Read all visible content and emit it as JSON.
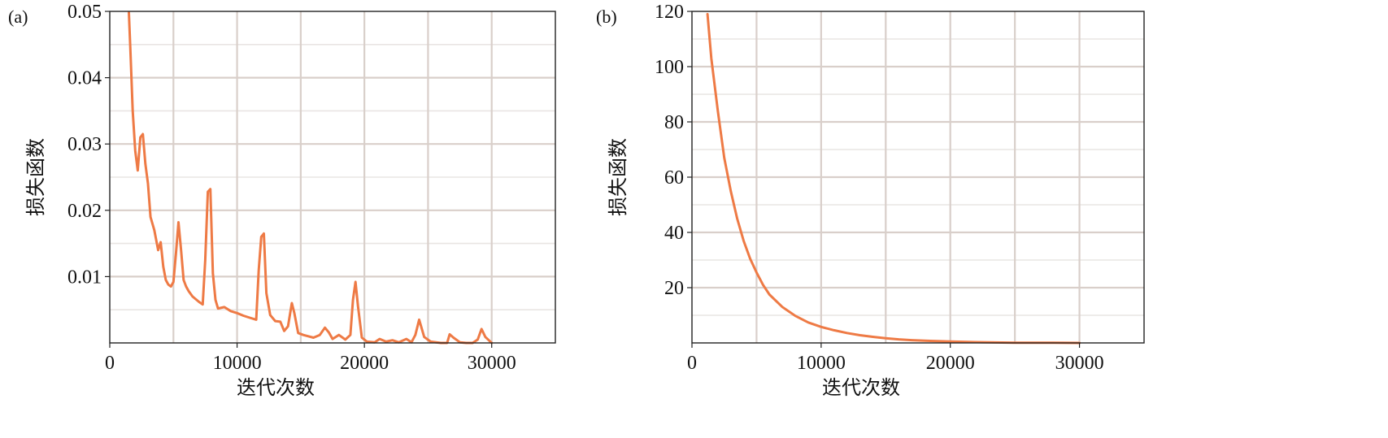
{
  "chart_data": [
    {
      "type": "line",
      "panel_label": "(a)",
      "xlabel": "迭代次数",
      "ylabel": "损失函数",
      "xlim": [
        0,
        35000
      ],
      "ylim": [
        0,
        0.05
      ],
      "xticks": [
        0,
        10000,
        20000,
        30000
      ],
      "xtick_labels": [
        "0",
        "10000",
        "20000",
        "30000"
      ],
      "yticks": [
        0.01,
        0.02,
        0.03,
        0.04,
        0.05
      ],
      "ytick_labels": [
        "0.01",
        "0.02",
        "0.03",
        "0.04",
        "0.05"
      ],
      "grid": true,
      "color": "#ee7a45",
      "series": [
        {
          "x": [
            1500,
            1600,
            1800,
            2000,
            2200,
            2400,
            2600,
            2800,
            3000,
            3200,
            3500,
            3800,
            4000,
            4200,
            4400,
            4600,
            4800,
            5000,
            5200,
            5400,
            5600,
            5800,
            6000,
            6200,
            6500,
            7000,
            7300,
            7500,
            7700,
            7900,
            8100,
            8300,
            8500,
            9000,
            9500,
            10000,
            10500,
            11000,
            11500,
            11700,
            11900,
            12100,
            12300,
            12600,
            13000,
            13400,
            13700,
            14000,
            14300,
            14500,
            14800,
            15200,
            16000,
            16500,
            16900,
            17200,
            17500,
            18000,
            18500,
            18900,
            19100,
            19300,
            19500,
            19800,
            20200,
            20800,
            21200,
            21700,
            22200,
            22700,
            23300,
            23700,
            24000,
            24300,
            24700,
            25200,
            26000,
            26500,
            26700,
            27000,
            27500,
            28000,
            28500,
            28900,
            29200,
            29500,
            30000
          ],
          "values": [
            0.0498,
            0.045,
            0.035,
            0.029,
            0.026,
            0.031,
            0.0315,
            0.027,
            0.024,
            0.019,
            0.017,
            0.014,
            0.0152,
            0.0115,
            0.0095,
            0.0088,
            0.0085,
            0.0092,
            0.0135,
            0.0182,
            0.014,
            0.0095,
            0.0085,
            0.0078,
            0.007,
            0.0062,
            0.0058,
            0.0125,
            0.0228,
            0.0232,
            0.0105,
            0.0065,
            0.0052,
            0.0054,
            0.0048,
            0.0045,
            0.0041,
            0.0038,
            0.0035,
            0.011,
            0.016,
            0.0165,
            0.0075,
            0.0042,
            0.0033,
            0.0032,
            0.0018,
            0.0025,
            0.006,
            0.0045,
            0.0015,
            0.0012,
            0.0008,
            0.0012,
            0.0023,
            0.0016,
            0.0006,
            0.0012,
            0.0005,
            0.0012,
            0.0065,
            0.0092,
            0.0055,
            0.0008,
            0.0002,
            0.0001,
            0.0006,
            0.0002,
            0.0004,
            0.0001,
            0.0006,
            0.0001,
            0.0012,
            0.0035,
            0.0009,
            0.0002,
            0.0,
            0.0,
            0.0013,
            0.0008,
            0.0001,
            0.0,
            0.0,
            0.0005,
            0.0021,
            0.0009,
            0.0
          ]
        }
      ]
    },
    {
      "type": "line",
      "panel_label": "(b)",
      "xlabel": "迭代次数",
      "ylabel": "损失函数",
      "xlim": [
        0,
        35000
      ],
      "ylim": [
        0,
        120
      ],
      "xticks": [
        0,
        10000,
        20000,
        30000
      ],
      "xtick_labels": [
        "0",
        "10000",
        "20000",
        "30000"
      ],
      "yticks": [
        20,
        40,
        60,
        80,
        100,
        120
      ],
      "ytick_labels": [
        "20",
        "40",
        "60",
        "80",
        "100",
        "120"
      ],
      "grid": true,
      "color": "#ee7a45",
      "series": [
        {
          "x": [
            1200,
            1500,
            2000,
            2500,
            3000,
            3500,
            4000,
            4500,
            5000,
            5500,
            6000,
            7000,
            8000,
            9000,
            10000,
            11000,
            12000,
            13000,
            14000,
            15000,
            16000,
            17000,
            18000,
            20000,
            22000,
            25000,
            28000,
            30000
          ],
          "values": [
            119,
            103,
            84,
            67,
            55,
            45,
            37,
            30.5,
            25.5,
            21,
            17.5,
            13,
            9.8,
            7.4,
            5.8,
            4.6,
            3.6,
            2.8,
            2.2,
            1.7,
            1.3,
            1.0,
            0.8,
            0.5,
            0.3,
            0.1,
            0.05,
            0.0
          ]
        }
      ]
    }
  ]
}
